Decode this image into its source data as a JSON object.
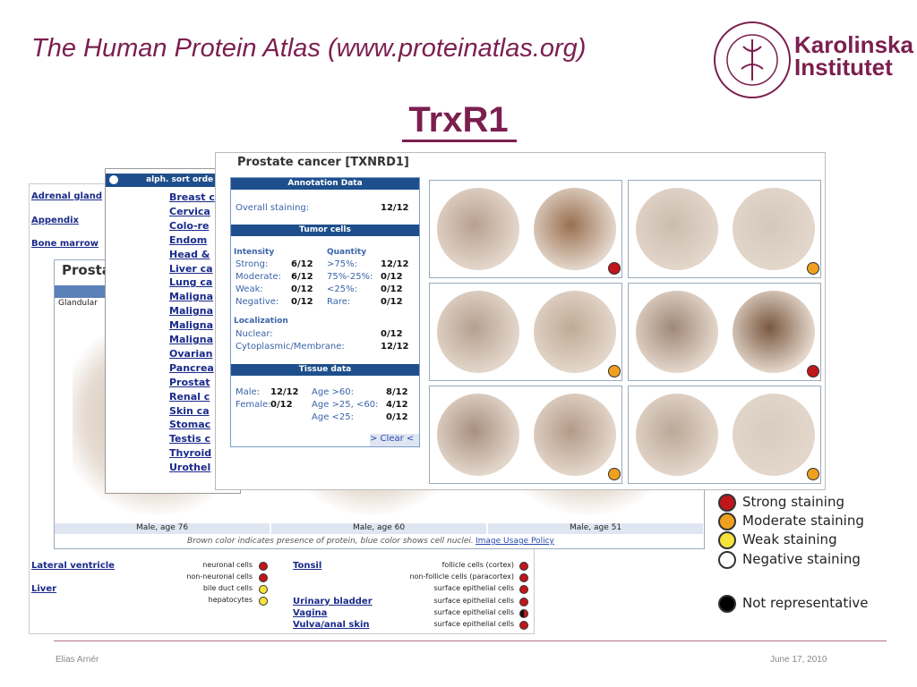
{
  "header": {
    "title": "The Human Protein Atlas (www.proteinatlas.org)",
    "logo": [
      "Karolinska",
      "Institutet"
    ]
  },
  "subtitle": "TrxR1",
  "background_table": {
    "left_tissues": [
      "Adrenal gland",
      "Appendix",
      "Bone marrow",
      "Lateral ventricle",
      "Liver"
    ],
    "left_cells": [
      "neuronal cells",
      "non-neuronal cells",
      "bile duct cells",
      "hepatocytes"
    ],
    "right_tissues": [
      "Tonsil",
      "Urinary bladder",
      "Vagina",
      "Vulva/anal skin"
    ],
    "right_cells": [
      "follicle cells (cortex)",
      "non-follicle cells (paracortex)",
      "surface epithelial cells",
      "surface epithelial cells",
      "surface epithelial cells",
      "surface epithelial cells"
    ]
  },
  "middle_panel": {
    "title": "Prosta",
    "column_header": "Glandular",
    "captions": [
      "Male, age 76",
      "Male, age 60",
      "Male, age 51"
    ],
    "note": "Brown color indicates presence of protein, blue color shows cell nuclei.",
    "link": "Image Usage Policy"
  },
  "sort_panel": {
    "header": "alph. sort orde",
    "items": [
      "Breast c",
      "Cervica",
      "Colo-re",
      "Endom",
      "Head &",
      "Liver ca",
      "Lung ca",
      "Maligna",
      "Maligna",
      "Maligna",
      "Maligna",
      "Ovarian",
      "Pancrea",
      "Prostat",
      "Renal c",
      "Skin ca",
      "Stomac",
      "Testis c",
      "Thyroid",
      "Urothel"
    ]
  },
  "front_panel": {
    "title": "Prostate cancer [TXNRD1]",
    "annotation_header": "Annotation Data",
    "overall": [
      "Overall staining:",
      "12/12"
    ],
    "tumor_header": "Tumor cells",
    "intensity_header": "Intensity",
    "quantity_header": "Quantity",
    "intensity_rows": [
      [
        "Strong:",
        "6/12",
        ">75%:",
        "12/12"
      ],
      [
        "Moderate:",
        "6/12",
        "75%-25%:",
        "0/12"
      ],
      [
        "Weak:",
        "0/12",
        "<25%:",
        "0/12"
      ],
      [
        "Negative:",
        "0/12",
        "Rare:",
        "0/12"
      ]
    ],
    "localization_header": "Localization",
    "localization_rows": [
      [
        "Nuclear:",
        "0/12"
      ],
      [
        "Cytoplasmic/Membrane:",
        "12/12"
      ]
    ],
    "tissue_header": "Tissue data",
    "sex_rows": [
      [
        "Male:",
        "12/12"
      ],
      [
        "Female:",
        "0/12"
      ]
    ],
    "age_rows": [
      [
        "Age >60:",
        "8/12"
      ],
      [
        "Age >25, <60:",
        "4/12"
      ],
      [
        "Age <25:",
        "0/12"
      ]
    ],
    "clear": "> Clear <"
  },
  "legend": [
    "Strong staining",
    "Moderate staining",
    "Weak staining",
    "Negative staining",
    "Not representative"
  ],
  "footer": {
    "author": "Elias Arnér",
    "date": "June 17, 2010"
  }
}
